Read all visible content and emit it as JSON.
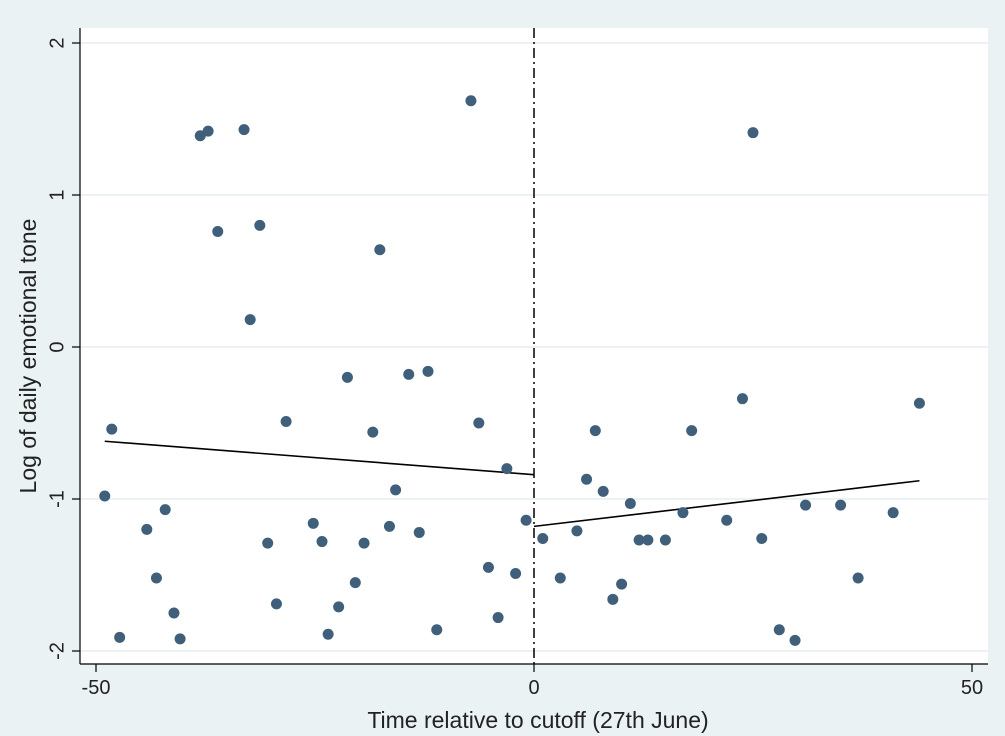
{
  "chart_data": {
    "type": "scatter",
    "title": "",
    "xlabel": "Time relative to cutoff (27th June)",
    "ylabel": "Log of daily emotional tone",
    "xlim": [
      -50,
      50
    ],
    "ylim": [
      -2,
      2
    ],
    "xticks": [
      -50,
      0,
      50
    ],
    "yticks": [
      -2,
      -1,
      0,
      1,
      2
    ],
    "grid": "horizontal",
    "legend": "none",
    "cutoff_line": {
      "x": 0,
      "style": "dash-dot"
    },
    "colors": {
      "background": "#eaf2f3",
      "plot_background": "#ffffff",
      "points": "#3f5f7a",
      "lines": "#000000",
      "grid": "#e6eef0"
    },
    "fit_lines": [
      {
        "x": [
          -49,
          0
        ],
        "y": [
          -0.62,
          -0.84
        ]
      },
      {
        "x": [
          0,
          44
        ],
        "y": [
          -1.18,
          -0.88
        ]
      }
    ],
    "points": [
      {
        "x": -49,
        "y": -0.98
      },
      {
        "x": -48.2,
        "y": -0.54
      },
      {
        "x": -47.3,
        "y": -1.91
      },
      {
        "x": -44.2,
        "y": -1.2
      },
      {
        "x": -43.1,
        "y": -1.52
      },
      {
        "x": -42.1,
        "y": -1.07
      },
      {
        "x": -41.1,
        "y": -1.75
      },
      {
        "x": -40.4,
        "y": -1.92
      },
      {
        "x": -38.1,
        "y": 1.39
      },
      {
        "x": -37.2,
        "y": 1.42
      },
      {
        "x": -36.1,
        "y": 0.76
      },
      {
        "x": -33.1,
        "y": 1.43
      },
      {
        "x": -32.4,
        "y": 0.18
      },
      {
        "x": -31.3,
        "y": 0.8
      },
      {
        "x": -30.4,
        "y": -1.29
      },
      {
        "x": -29.4,
        "y": -1.69
      },
      {
        "x": -28.3,
        "y": -0.49
      },
      {
        "x": -25.2,
        "y": -1.16
      },
      {
        "x": -24.2,
        "y": -1.28
      },
      {
        "x": -23.5,
        "y": -1.89
      },
      {
        "x": -22.3,
        "y": -1.71
      },
      {
        "x": -21.3,
        "y": -0.2
      },
      {
        "x": -20.4,
        "y": -1.55
      },
      {
        "x": -19.4,
        "y": -1.29
      },
      {
        "x": -18.4,
        "y": -0.56
      },
      {
        "x": -17.6,
        "y": 0.64
      },
      {
        "x": -16.5,
        "y": -1.18
      },
      {
        "x": -15.8,
        "y": -0.94
      },
      {
        "x": -14.3,
        "y": -0.18
      },
      {
        "x": -13.1,
        "y": -1.22
      },
      {
        "x": -12.1,
        "y": -0.16
      },
      {
        "x": -11.1,
        "y": -1.86
      },
      {
        "x": -7.2,
        "y": 1.62
      },
      {
        "x": -6.3,
        "y": -0.5
      },
      {
        "x": -5.2,
        "y": -1.45
      },
      {
        "x": -4.1,
        "y": -1.78
      },
      {
        "x": -3.1,
        "y": -0.8
      },
      {
        "x": -2.1,
        "y": -1.49
      },
      {
        "x": -0.9,
        "y": -1.14
      },
      {
        "x": 1.0,
        "y": -1.26
      },
      {
        "x": 3.0,
        "y": -1.52
      },
      {
        "x": 4.9,
        "y": -1.21
      },
      {
        "x": 6.0,
        "y": -0.87
      },
      {
        "x": 7.0,
        "y": -0.55
      },
      {
        "x": 7.9,
        "y": -0.95
      },
      {
        "x": 9.0,
        "y": -1.66
      },
      {
        "x": 10.0,
        "y": -1.56
      },
      {
        "x": 11.0,
        "y": -1.03
      },
      {
        "x": 12.0,
        "y": -1.27
      },
      {
        "x": 13.0,
        "y": -1.27
      },
      {
        "x": 15.0,
        "y": -1.27
      },
      {
        "x": 17.0,
        "y": -1.09
      },
      {
        "x": 18.0,
        "y": -0.55
      },
      {
        "x": 22.0,
        "y": -1.14
      },
      {
        "x": 23.8,
        "y": -0.34
      },
      {
        "x": 25.0,
        "y": 1.41
      },
      {
        "x": 26.0,
        "y": -1.26
      },
      {
        "x": 28.0,
        "y": -1.86
      },
      {
        "x": 29.8,
        "y": -1.93
      },
      {
        "x": 31.0,
        "y": -1.04
      },
      {
        "x": 35.0,
        "y": -1.04
      },
      {
        "x": 37.0,
        "y": -1.52
      },
      {
        "x": 41.0,
        "y": -1.09
      },
      {
        "x": 44.0,
        "y": -0.37
      }
    ]
  }
}
